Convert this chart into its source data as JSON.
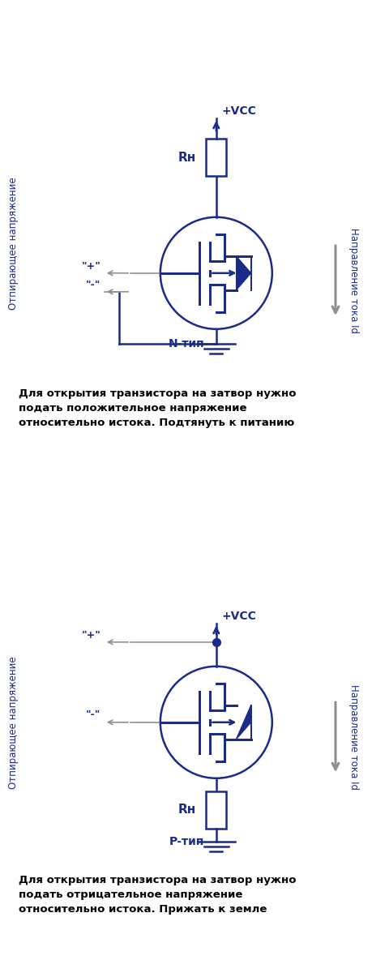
{
  "blue": "#1a2b8a",
  "gray": "#909090",
  "black": "#000000",
  "bg": "#ffffff",
  "n_label": "N-тип",
  "p_label": "Р-тип",
  "rn_label": "Rн",
  "vcc_label": "+VCC",
  "plus_label": "\"+\"",
  "minus_label": "\"-\"",
  "left_label": "Отпирающее напряжение",
  "right_label": "Направление тока Id",
  "cap1": "Для открытия транзистора на затвор нужно\nподать положительное напряжение\nотносительно истока. Подтянуть к питанию",
  "cap2": "Для открытия транзистора на затвор нужно\nподать отрицательное напряжение\nотносительно истока. Прижать к земле"
}
